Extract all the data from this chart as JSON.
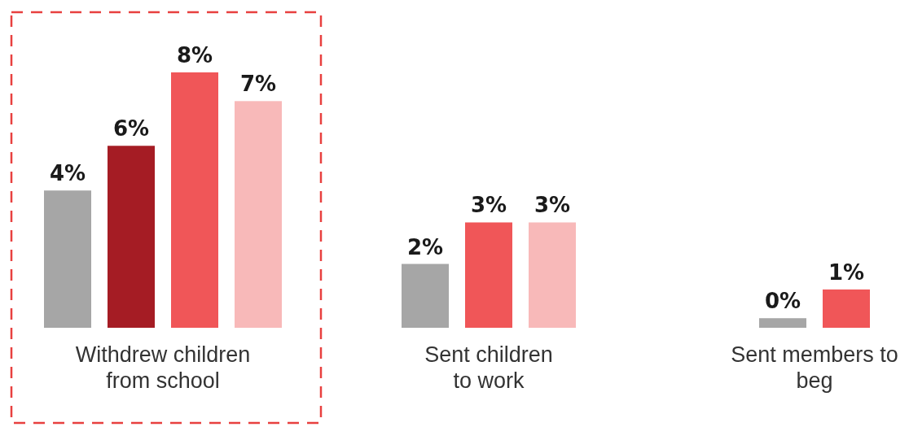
{
  "chart_data": {
    "type": "bar",
    "categories": [
      "Withdrew children\nfrom school",
      "Sent children\nto work",
      "Sent members to\nbeg"
    ],
    "series": [
      {
        "color": "#a6a6a6",
        "values": [
          4.3,
          2.0,
          0.3
        ],
        "value_labels": [
          "4%",
          "2%",
          "0%"
        ]
      },
      {
        "color": "#a51c24",
        "values": [
          5.7,
          null,
          null
        ],
        "value_labels": [
          "6%",
          null,
          null
        ]
      },
      {
        "color": "#f05658",
        "values": [
          8.0,
          3.3,
          1.2
        ],
        "value_labels": [
          "8%",
          "3%",
          "1%"
        ]
      },
      {
        "color": "#f8b9b9",
        "values": [
          7.1,
          3.3,
          null
        ],
        "value_labels": [
          "7%",
          "3%",
          null
        ]
      }
    ]
  }
}
